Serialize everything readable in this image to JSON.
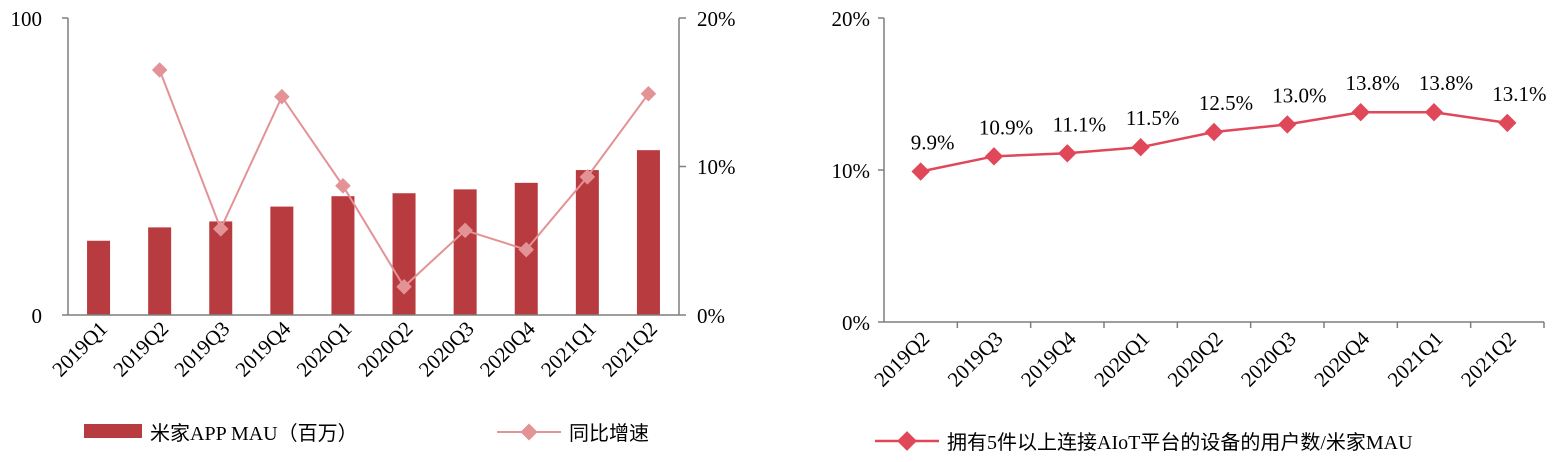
{
  "colors": {
    "bar": "#b83b3f",
    "yoy_line": "#e39296",
    "share_line": "#e0485a",
    "axis": "#7f7f7f"
  },
  "chart_data": [
    {
      "type": "bar",
      "categories": [
        "2019Q1",
        "2019Q2",
        "2019Q3",
        "2019Q4",
        "2020Q1",
        "2020Q2",
        "2020Q3",
        "2020Q4",
        "2021Q1",
        "2021Q2"
      ],
      "series": [
        {
          "name": "米家APP MAU（百万）",
          "type": "bar",
          "axis": "left",
          "values": [
            25,
            29.5,
            31.5,
            36.5,
            40,
            41,
            42.3,
            44.5,
            48.8,
            55.5
          ]
        },
        {
          "name": "同比增速",
          "type": "line",
          "axis": "right",
          "values": [
            null,
            16.5,
            5.8,
            14.7,
            8.7,
            1.9,
            5.7,
            4.4,
            9.3,
            14.9
          ]
        }
      ],
      "y_left": {
        "ylim": [
          0,
          100
        ],
        "ticks": [
          "0",
          "100"
        ]
      },
      "y_right": {
        "ylim": [
          0,
          20
        ],
        "ticks": [
          "0%",
          "10%",
          "20%"
        ]
      }
    },
    {
      "type": "line",
      "categories": [
        "2019Q2",
        "2019Q3",
        "2019Q4",
        "2020Q1",
        "2020Q2",
        "2020Q3",
        "2020Q4",
        "2021Q1",
        "2021Q2"
      ],
      "series": [
        {
          "name": "拥有5件以上连接AIoT平台的设备的用户数/米家MAU",
          "values": [
            9.9,
            10.9,
            11.1,
            11.5,
            12.5,
            13.0,
            13.8,
            13.8,
            13.1
          ],
          "labels": [
            "9.9%",
            "10.9%",
            "11.1%",
            "11.5%",
            "12.5%",
            "13.0%",
            "13.8%",
            "13.8%",
            "13.1%"
          ]
        }
      ],
      "ylim": [
        0,
        20
      ],
      "ticks": [
        "0%",
        "10%",
        "20%"
      ]
    }
  ]
}
